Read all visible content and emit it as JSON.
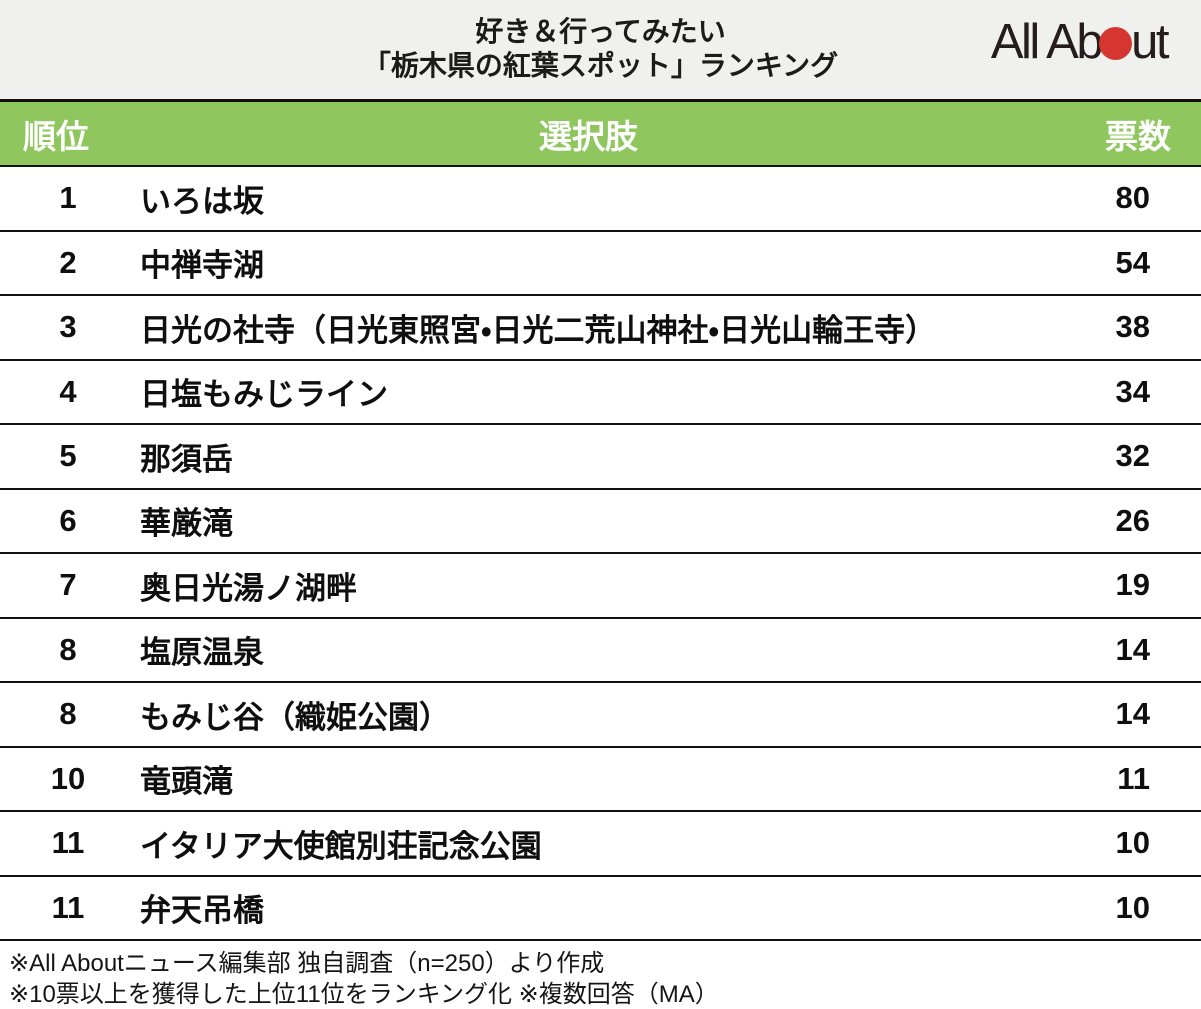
{
  "header": {
    "title_line1": "好き＆行ってみたい",
    "title_line2": "「栃木県の紅葉スポット」ランキング",
    "logo": {
      "text_left": "All Ab",
      "text_right": "ut",
      "alt": "All About"
    }
  },
  "table": {
    "columns": {
      "rank": "順位",
      "choice": "選択肢",
      "votes": "票数"
    },
    "rows": [
      {
        "rank": "1",
        "name": "いろは坂",
        "votes": "80"
      },
      {
        "rank": "2",
        "name": "中禅寺湖",
        "votes": "54"
      },
      {
        "rank": "3",
        "name": "日光の社寺（日光東照宮・日光二荒山神社・日光山輪王寺）",
        "votes": "38"
      },
      {
        "rank": "4",
        "name": "日塩もみじライン",
        "votes": "34"
      },
      {
        "rank": "5",
        "name": "那須岳",
        "votes": "32"
      },
      {
        "rank": "6",
        "name": "華厳滝",
        "votes": "26"
      },
      {
        "rank": "7",
        "name": "奥日光湯ノ湖畔",
        "votes": "19"
      },
      {
        "rank": "8",
        "name": "塩原温泉",
        "votes": "14"
      },
      {
        "rank": "8",
        "name": "もみじ谷（織姫公園）",
        "votes": "14"
      },
      {
        "rank": "10",
        "name": "竜頭滝",
        "votes": "11"
      },
      {
        "rank": "11",
        "name": "イタリア大使館別荘記念公園",
        "votes": "10"
      },
      {
        "rank": "11",
        "name": "弁天吊橋",
        "votes": "10"
      }
    ]
  },
  "footnotes": [
    "※All Aboutニュース編集部 独自調査（n=250）より作成",
    "※10票以上を獲得した上位11位をランキング化 ※複数回答（MA）"
  ],
  "chart_data": {
    "type": "table",
    "title": "好き＆行ってみたい「栃木県の紅葉スポット」ランキング",
    "columns": [
      "順位",
      "選択肢",
      "票数"
    ],
    "categories": [
      "いろは坂",
      "中禅寺湖",
      "日光の社寺（日光東照宮・日光二荒山神社・日光山輪王寺）",
      "日塩もみじライン",
      "那須岳",
      "華厳滝",
      "奥日光湯ノ湖畔",
      "塩原温泉",
      "もみじ谷（織姫公園）",
      "竜頭滝",
      "イタリア大使館別荘記念公園",
      "弁天吊橋"
    ],
    "ranks": [
      1,
      2,
      3,
      4,
      5,
      6,
      7,
      8,
      8,
      10,
      11,
      11
    ],
    "values": [
      80,
      54,
      38,
      34,
      32,
      26,
      19,
      14,
      14,
      11,
      10,
      10
    ],
    "sample_size": "n=250",
    "notes": "10票以上を獲得した上位11位をランキング化、複数回答（MA）"
  },
  "colors": {
    "header_bg": "#F0F0EF",
    "green": "#8FC75E",
    "logo_red": "#D53630",
    "line": "#111111",
    "text": "#1A1A1A"
  }
}
